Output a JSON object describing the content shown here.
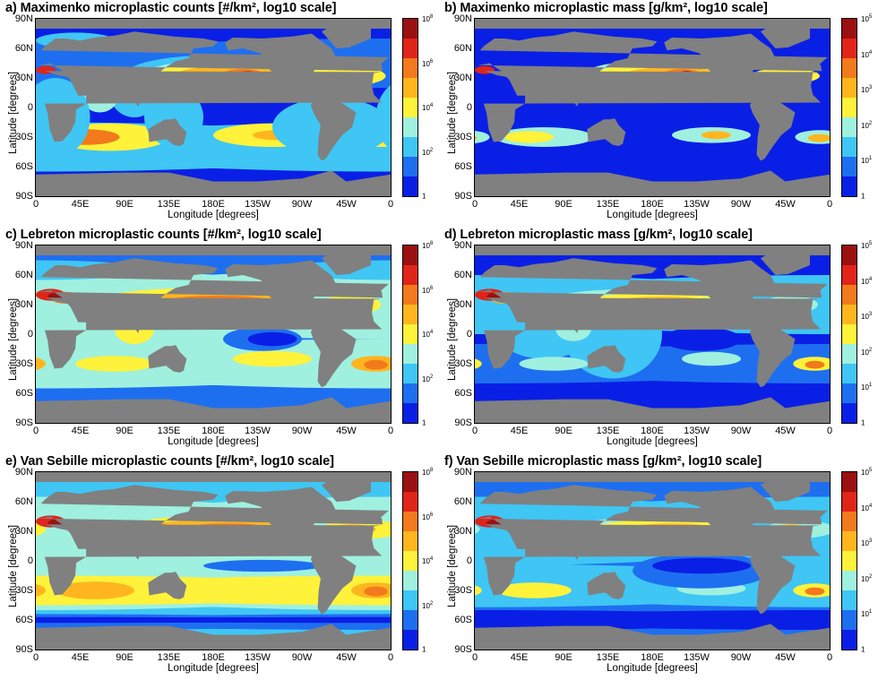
{
  "colors": {
    "land": "#808080",
    "levels": [
      "#0a1fe6",
      "#1e6ff0",
      "#3fc6f4",
      "#9ff0df",
      "#fff23a",
      "#ffb61e",
      "#f27a1c",
      "#e0241a",
      "#9b1010"
    ]
  },
  "axes": {
    "xticks": [
      "0",
      "45E",
      "90E",
      "135E",
      "180E",
      "135W",
      "90W",
      "45W",
      "0"
    ],
    "yticks": [
      "90N",
      "60N",
      "30N",
      "0",
      "30S",
      "60S",
      "90S"
    ],
    "xlabel": "Longitude [degrees]",
    "ylabel": "Latitude [degrees]"
  },
  "panels": [
    {
      "title": "a) Maximenko microplastic counts [#/km², log10 scale]",
      "colorbar": [
        {
          "base": "10",
          "exp": "8"
        },
        {
          "base": "10",
          "exp": "6"
        },
        {
          "base": "10",
          "exp": "4"
        },
        {
          "base": "10",
          "exp": "2"
        },
        {
          "base": "1",
          "exp": ""
        }
      ]
    },
    {
      "title": "b) Maximenko microplastic mass [g/km², log10 scale]",
      "colorbar": [
        {
          "base": "10",
          "exp": "5"
        },
        {
          "base": "10",
          "exp": "4"
        },
        {
          "base": "10",
          "exp": "3"
        },
        {
          "base": "10",
          "exp": "2"
        },
        {
          "base": "10",
          "exp": "1"
        },
        {
          "base": "1",
          "exp": ""
        }
      ]
    },
    {
      "title": "c) Lebreton microplastic counts [#/km², log10 scale]",
      "colorbar": [
        {
          "base": "10",
          "exp": "8"
        },
        {
          "base": "10",
          "exp": "6"
        },
        {
          "base": "10",
          "exp": "4"
        },
        {
          "base": "10",
          "exp": "2"
        },
        {
          "base": "1",
          "exp": ""
        }
      ]
    },
    {
      "title": "d) Lebreton microplastic mass [g/km², log10 scale]",
      "colorbar": [
        {
          "base": "10",
          "exp": "5"
        },
        {
          "base": "10",
          "exp": "4"
        },
        {
          "base": "10",
          "exp": "3"
        },
        {
          "base": "10",
          "exp": "2"
        },
        {
          "base": "10",
          "exp": "1"
        },
        {
          "base": "1",
          "exp": ""
        }
      ]
    },
    {
      "title": "e) Van Sebille microplastic counts [#/km², log10 scale]",
      "colorbar": [
        {
          "base": "10",
          "exp": "8"
        },
        {
          "base": "10",
          "exp": "6"
        },
        {
          "base": "10",
          "exp": "4"
        },
        {
          "base": "10",
          "exp": "2"
        },
        {
          "base": "1",
          "exp": ""
        }
      ]
    },
    {
      "title": "f) Van Sebille microplastic mass [g/km², log10 scale]",
      "colorbar": [
        {
          "base": "10",
          "exp": "5"
        },
        {
          "base": "10",
          "exp": "4"
        },
        {
          "base": "10",
          "exp": "3"
        },
        {
          "base": "10",
          "exp": "2"
        },
        {
          "base": "10",
          "exp": "1"
        },
        {
          "base": "1",
          "exp": ""
        }
      ]
    }
  ],
  "chart_data": [
    {
      "type": "heatmap",
      "title": "a) Maximenko microplastic counts [#/km², log10 scale]",
      "xlabel": "Longitude [degrees]",
      "ylabel": "Latitude [degrees]",
      "xlim": [
        0,
        360
      ],
      "ylim": [
        -90,
        90
      ],
      "scale": "log10",
      "colorbar_range": [
        1,
        100000000
      ]
    },
    {
      "type": "heatmap",
      "title": "b) Maximenko microplastic mass [g/km², log10 scale]",
      "xlabel": "Longitude [degrees]",
      "ylabel": "Latitude [degrees]",
      "xlim": [
        0,
        360
      ],
      "ylim": [
        -90,
        90
      ],
      "scale": "log10",
      "colorbar_range": [
        1,
        100000
      ]
    },
    {
      "type": "heatmap",
      "title": "c) Lebreton microplastic counts [#/km², log10 scale]",
      "xlabel": "Longitude [degrees]",
      "ylabel": "Latitude [degrees]",
      "xlim": [
        0,
        360
      ],
      "ylim": [
        -90,
        90
      ],
      "scale": "log10",
      "colorbar_range": [
        1,
        100000000
      ]
    },
    {
      "type": "heatmap",
      "title": "d) Lebreton microplastic mass [g/km², log10 scale]",
      "xlabel": "Longitude [degrees]",
      "ylabel": "Latitude [degrees]",
      "xlim": [
        0,
        360
      ],
      "ylim": [
        -90,
        90
      ],
      "scale": "log10",
      "colorbar_range": [
        1,
        100000
      ]
    },
    {
      "type": "heatmap",
      "title": "e) Van Sebille microplastic counts [#/km², log10 scale]",
      "xlabel": "Longitude [degrees]",
      "ylabel": "Latitude [degrees]",
      "xlim": [
        0,
        360
      ],
      "ylim": [
        -90,
        90
      ],
      "scale": "log10",
      "colorbar_range": [
        1,
        100000000
      ]
    },
    {
      "type": "heatmap",
      "title": "f) Van Sebille microplastic mass [g/km², log10 scale]",
      "xlabel": "Longitude [degrees]",
      "ylabel": "Latitude [degrees]",
      "xlim": [
        0,
        360
      ],
      "ylim": [
        -90,
        90
      ],
      "scale": "log10",
      "colorbar_range": [
        1,
        100000
      ]
    }
  ]
}
